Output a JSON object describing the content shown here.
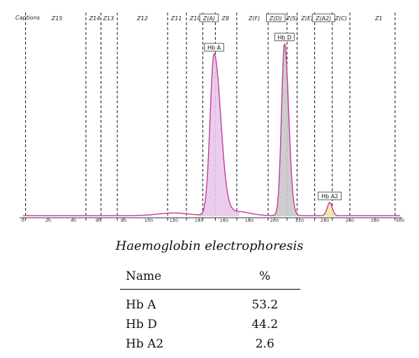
{
  "chart_data": {
    "type": "area",
    "xlim": [
      0,
      300
    ],
    "x_ticks": [
      0,
      20,
      40,
      60,
      80,
      100,
      120,
      140,
      160,
      180,
      200,
      220,
      240,
      260,
      280,
      300
    ],
    "zone_row_label": "Captions",
    "zones": [
      {
        "label": "Z15",
        "center": 27,
        "boxed": false
      },
      {
        "label": "Z14",
        "center": 57,
        "boxed": false
      },
      {
        "label": "Z13",
        "center": 68,
        "boxed": false
      },
      {
        "label": "Z12",
        "center": 95,
        "boxed": false
      },
      {
        "label": "Z11",
        "center": 122,
        "boxed": false
      },
      {
        "label": "Z10",
        "center": 137,
        "boxed": false
      },
      {
        "label": "Z(A)",
        "center": 148,
        "boxed": true
      },
      {
        "label": "Z8",
        "center": 161,
        "boxed": false
      },
      {
        "label": "Z(F)",
        "center": 184,
        "boxed": false
      },
      {
        "label": "Z(D)",
        "center": 201,
        "boxed": true
      },
      {
        "label": "Z(S)",
        "center": 214,
        "boxed": false
      },
      {
        "label": "Z(E)",
        "center": 226,
        "boxed": false
      },
      {
        "label": "Z(A2)",
        "center": 239,
        "boxed": true
      },
      {
        "label": "Z(C)",
        "center": 253,
        "boxed": false
      },
      {
        "label": "Z1",
        "center": 283,
        "boxed": false
      }
    ],
    "zone_boundaries": [
      2,
      50,
      62,
      75,
      115,
      130,
      143,
      153,
      170,
      195,
      210,
      218,
      232,
      246,
      260,
      296
    ],
    "peaks": [
      {
        "label": "Hb A",
        "center": 152,
        "relative_height": 0.86,
        "color": "#e8c8ea",
        "line": "#c23b9a"
      },
      {
        "label": "Hb D",
        "center": 208,
        "relative_height": 0.92,
        "color": "#c8c8c8",
        "line": "#c23b9a"
      },
      {
        "label": "Hb A2",
        "center": 244,
        "relative_height": 0.07,
        "color": "#f0e8a0",
        "line": "#c23b9a"
      }
    ]
  },
  "caption": "Haemoglobin electrophoresis",
  "table": {
    "headers": {
      "name": "Name",
      "percent": "%"
    },
    "rows": [
      {
        "name": "Hb A",
        "percent": "53.2"
      },
      {
        "name": "Hb D",
        "percent": "44.2"
      },
      {
        "name": "Hb A2",
        "percent": "2.6"
      }
    ]
  }
}
